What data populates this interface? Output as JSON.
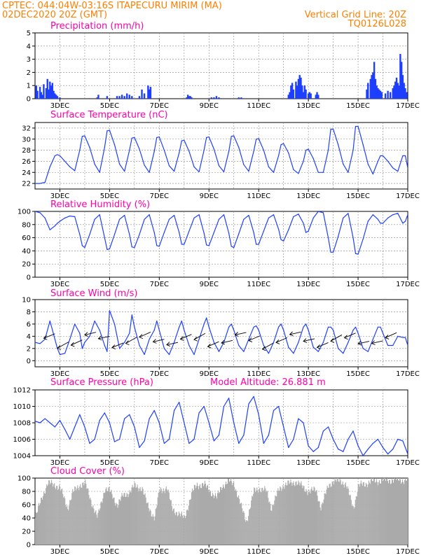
{
  "header": {
    "line1": "CPTEC:   044:04W-03:16S   ITAPECURU MIRIM (MA)",
    "line2_left": "02DEC2020 20Z (GMT)",
    "line2_right": "Vertical Grid Line: 20Z",
    "line3_right": "TQ0126L028"
  },
  "colors": {
    "header": "#ff7f00",
    "panel_title": "#ff00aa",
    "line": "#1f3fff",
    "bar": "#1f3fff",
    "cloud": "#aaaaaa",
    "grid": "#888888"
  },
  "x_axis_labels": [
    "3DEC",
    "5DEC",
    "7DEC",
    "9DEC",
    "11DEC",
    "13DEC",
    "15DEC",
    "17DEC"
  ],
  "chart_data": [
    {
      "id": "precip",
      "type": "bar",
      "title": "Precipitation (mm/h)",
      "ylim": [
        0,
        5
      ],
      "yticks": [
        0,
        1,
        2,
        3,
        4,
        5
      ],
      "xlim_days": [
        2.0,
        17.0
      ],
      "grid": true,
      "x": [
        2.05,
        2.1,
        2.2,
        2.25,
        2.3,
        2.35,
        2.45,
        2.5,
        2.55,
        2.6,
        2.65,
        2.7,
        2.75,
        2.8,
        2.85,
        2.9,
        3.0,
        4.5,
        4.55,
        4.9,
        5.3,
        5.4,
        5.5,
        5.6,
        5.7,
        5.8,
        5.9,
        6.2,
        6.3,
        6.4,
        6.55,
        6.6,
        6.65,
        8.1,
        8.15,
        8.2,
        8.25,
        8.3,
        9.1,
        9.2,
        9.3,
        9.4,
        10.2,
        10.3,
        12.2,
        12.25,
        12.3,
        12.35,
        12.4,
        12.5,
        12.55,
        12.6,
        12.65,
        12.7,
        12.75,
        12.8,
        12.85,
        12.9,
        13.0,
        13.05,
        13.1,
        13.3,
        13.35,
        13.4,
        15.35,
        15.4,
        15.5,
        15.55,
        15.6,
        15.65,
        15.7,
        15.75,
        15.8,
        15.85,
        15.9,
        15.95,
        16.1,
        16.2,
        16.3,
        16.4,
        16.45,
        16.5,
        16.55,
        16.6,
        16.65,
        16.7,
        16.75,
        16.8,
        16.85,
        16.9,
        16.95
      ],
      "values": [
        1.0,
        0.6,
        0.9,
        0.5,
        0.3,
        1.1,
        0.8,
        1.5,
        0.7,
        1.3,
        1.0,
        1.2,
        0.6,
        0.4,
        0.3,
        0.2,
        0.1,
        0.1,
        0.3,
        0.2,
        0.2,
        0.2,
        0.3,
        0.2,
        0.4,
        0.3,
        0.2,
        0.2,
        0.7,
        0.4,
        1.0,
        0.7,
        0.9,
        0.1,
        0.3,
        0.2,
        0.2,
        0.1,
        0.1,
        0.1,
        0.2,
        0.1,
        0.1,
        0.1,
        0.3,
        0.5,
        1.0,
        1.2,
        0.7,
        1.3,
        1.0,
        1.5,
        1.8,
        1.6,
        1.0,
        0.5,
        1.0,
        0.7,
        0.4,
        0.5,
        0.4,
        0.3,
        0.5,
        0.3,
        0.7,
        1.2,
        1.5,
        1.8,
        2.0,
        2.8,
        1.5,
        1.0,
        0.8,
        0.7,
        0.6,
        0.5,
        0.4,
        0.6,
        0.5,
        0.8,
        1.0,
        1.3,
        1.6,
        1.2,
        1.0,
        3.4,
        2.8,
        1.8,
        1.2,
        0.8,
        0.5
      ]
    },
    {
      "id": "temp",
      "type": "line",
      "title": "Surface Temperature (nC)",
      "ylim": [
        21,
        33
      ],
      "yticks": [
        22,
        24,
        26,
        28,
        30,
        32
      ],
      "grid": true,
      "x": [
        2.0,
        2.2,
        2.4,
        2.6,
        2.8,
        2.9,
        3.0,
        3.2,
        3.4,
        3.6,
        3.8,
        3.9,
        4.0,
        4.2,
        4.4,
        4.6,
        4.8,
        4.9,
        5.0,
        5.2,
        5.4,
        5.6,
        5.8,
        5.9,
        6.0,
        6.2,
        6.4,
        6.6,
        6.8,
        6.9,
        7.0,
        7.2,
        7.4,
        7.6,
        7.8,
        7.9,
        8.0,
        8.2,
        8.4,
        8.6,
        8.8,
        8.9,
        9.0,
        9.2,
        9.4,
        9.6,
        9.8,
        9.9,
        10.0,
        10.2,
        10.4,
        10.6,
        10.8,
        10.9,
        11.0,
        11.2,
        11.4,
        11.6,
        11.8,
        11.9,
        12.0,
        12.2,
        12.4,
        12.6,
        12.8,
        12.9,
        13.0,
        13.2,
        13.4,
        13.6,
        13.8,
        13.9,
        14.0,
        14.2,
        14.4,
        14.6,
        14.8,
        14.9,
        15.0,
        15.2,
        15.4,
        15.6,
        15.8,
        15.9,
        16.0,
        16.2,
        16.4,
        16.6,
        16.8,
        16.9,
        17.0
      ],
      "values": [
        22.0,
        22.0,
        22.2,
        25.0,
        27.0,
        27.2,
        27.0,
        26.0,
        25.0,
        24.3,
        28.0,
        30.5,
        30.6,
        28.5,
        25.5,
        24.0,
        28.5,
        31.5,
        31.6,
        29.0,
        25.5,
        24.2,
        28.0,
        30.2,
        30.3,
        28.2,
        25.3,
        24.0,
        27.8,
        30.3,
        30.4,
        28.0,
        25.2,
        24.2,
        27.5,
        29.7,
        29.8,
        27.8,
        25.0,
        24.1,
        28.0,
        30.3,
        30.4,
        28.2,
        25.2,
        24.1,
        27.8,
        30.5,
        30.6,
        28.5,
        25.4,
        24.2,
        27.8,
        30.0,
        30.1,
        28.0,
        25.0,
        24.0,
        27.0,
        29.0,
        29.2,
        27.5,
        24.5,
        23.8,
        26.0,
        28.0,
        28.2,
        26.5,
        24.0,
        24.0,
        28.0,
        31.8,
        31.8,
        29.0,
        25.5,
        24.0,
        28.0,
        32.3,
        32.3,
        29.0,
        25.5,
        23.7,
        26.0,
        27.0,
        27.0,
        26.0,
        24.8,
        24.2,
        27.0,
        27.0,
        24.8
      ]
    },
    {
      "id": "rh",
      "type": "line",
      "title": "Relative Humidity (%)",
      "ylim": [
        0,
        100
      ],
      "yticks": [
        0,
        20,
        40,
        60,
        80,
        100
      ],
      "grid": true,
      "x": [
        2.0,
        2.2,
        2.4,
        2.6,
        2.8,
        2.9,
        3.0,
        3.2,
        3.4,
        3.6,
        3.8,
        3.9,
        4.0,
        4.2,
        4.4,
        4.6,
        4.8,
        4.9,
        5.0,
        5.2,
        5.4,
        5.6,
        5.8,
        5.9,
        6.0,
        6.2,
        6.4,
        6.6,
        6.8,
        6.9,
        7.0,
        7.2,
        7.4,
        7.6,
        7.8,
        7.9,
        8.0,
        8.2,
        8.4,
        8.6,
        8.8,
        8.9,
        9.0,
        9.2,
        9.4,
        9.6,
        9.8,
        9.9,
        10.0,
        10.2,
        10.4,
        10.6,
        10.8,
        10.9,
        11.0,
        11.2,
        11.4,
        11.6,
        11.8,
        11.9,
        12.0,
        12.2,
        12.4,
        12.6,
        12.8,
        12.9,
        13.0,
        13.2,
        13.4,
        13.6,
        13.8,
        13.9,
        14.0,
        14.2,
        14.4,
        14.6,
        14.8,
        14.9,
        15.0,
        15.2,
        15.4,
        15.6,
        15.8,
        15.9,
        16.0,
        16.2,
        16.4,
        16.6,
        16.8,
        16.9,
        17.0
      ],
      "values": [
        100,
        98,
        90,
        72,
        78,
        82,
        85,
        90,
        93,
        92,
        65,
        48,
        45,
        65,
        88,
        95,
        60,
        42,
        43,
        65,
        88,
        94,
        65,
        46,
        45,
        65,
        88,
        95,
        68,
        48,
        47,
        68,
        88,
        94,
        68,
        50,
        50,
        70,
        90,
        95,
        67,
        49,
        48,
        68,
        88,
        95,
        67,
        47,
        45,
        66,
        88,
        94,
        68,
        50,
        50,
        70,
        90,
        95,
        73,
        57,
        55,
        72,
        92,
        96,
        82,
        68,
        70,
        90,
        100,
        98,
        60,
        38,
        38,
        62,
        90,
        97,
        60,
        36,
        35,
        58,
        85,
        95,
        88,
        82,
        82,
        90,
        95,
        97,
        82,
        85,
        95
      ]
    },
    {
      "id": "wind",
      "type": "line",
      "title": "Surface Wind (m/s)",
      "ylim": [
        -1,
        10
      ],
      "yticks": [
        0,
        2,
        4,
        6,
        8,
        10
      ],
      "grid": true,
      "x": [
        2.0,
        2.2,
        2.4,
        2.6,
        2.8,
        2.9,
        3.0,
        3.2,
        3.4,
        3.6,
        3.8,
        3.9,
        4.0,
        4.2,
        4.4,
        4.6,
        4.8,
        4.9,
        5.0,
        5.2,
        5.4,
        5.6,
        5.8,
        5.9,
        6.0,
        6.2,
        6.4,
        6.6,
        6.8,
        6.9,
        7.0,
        7.2,
        7.4,
        7.6,
        7.8,
        7.9,
        8.0,
        8.2,
        8.4,
        8.6,
        8.8,
        8.9,
        9.0,
        9.2,
        9.4,
        9.6,
        9.8,
        9.9,
        10.0,
        10.2,
        10.4,
        10.6,
        10.8,
        10.9,
        11.0,
        11.2,
        11.4,
        11.6,
        11.8,
        11.9,
        12.0,
        12.2,
        12.4,
        12.6,
        12.8,
        12.9,
        13.0,
        13.2,
        13.4,
        13.6,
        13.8,
        13.9,
        14.0,
        14.2,
        14.4,
        14.6,
        14.8,
        14.9,
        15.0,
        15.2,
        15.4,
        15.6,
        15.8,
        15.9,
        16.0,
        16.2,
        16.4,
        16.6,
        16.8,
        16.9,
        17.0
      ],
      "values": [
        3.0,
        2.8,
        3.5,
        6.5,
        3.5,
        2.0,
        1.0,
        1.2,
        3.5,
        6.0,
        4.5,
        2.0,
        3.0,
        4.0,
        6.5,
        5.0,
        2.5,
        1.5,
        8.2,
        6.0,
        2.0,
        3.0,
        4.5,
        7.5,
        5.5,
        2.5,
        1.0,
        3.5,
        5.0,
        6.5,
        5.0,
        2.0,
        1.0,
        3.0,
        5.5,
        6.5,
        5.0,
        2.5,
        1.0,
        3.5,
        6.0,
        7.0,
        5.5,
        3.0,
        1.5,
        3.0,
        5.5,
        6.0,
        5.0,
        2.5,
        1.5,
        3.5,
        5.5,
        5.7,
        5.0,
        2.5,
        1.2,
        3.0,
        5.5,
        6.0,
        5.0,
        2.2,
        1.2,
        3.0,
        5.5,
        6.0,
        5.0,
        2.2,
        1.5,
        3.0,
        5.5,
        5.5,
        5.0,
        2.0,
        1.2,
        3.0,
        5.0,
        5.5,
        4.5,
        2.0,
        1.5,
        3.5,
        5.5,
        5.5,
        4.5,
        2.5,
        2.5,
        4.0,
        3.8,
        3.8,
        2.5
      ]
    },
    {
      "id": "pressure",
      "type": "line",
      "title": "Surface Pressure (hPa)",
      "subtitle": "Model Altitude: 26.881 m",
      "ylim": [
        1004,
        1012
      ],
      "yticks": [
        1004,
        1006,
        1008,
        1010,
        1012
      ],
      "grid": true,
      "x": [
        2.0,
        2.2,
        2.4,
        2.6,
        2.8,
        3.0,
        3.2,
        3.4,
        3.6,
        3.8,
        4.0,
        4.2,
        4.4,
        4.6,
        4.8,
        5.0,
        5.2,
        5.4,
        5.6,
        5.8,
        6.0,
        6.2,
        6.4,
        6.6,
        6.8,
        7.0,
        7.2,
        7.4,
        7.6,
        7.8,
        8.0,
        8.2,
        8.4,
        8.6,
        8.8,
        9.0,
        9.2,
        9.4,
        9.6,
        9.8,
        10.0,
        10.2,
        10.4,
        10.6,
        10.8,
        11.0,
        11.2,
        11.4,
        11.6,
        11.8,
        12.0,
        12.2,
        12.4,
        12.6,
        12.8,
        13.0,
        13.2,
        13.4,
        13.6,
        13.8,
        14.0,
        14.2,
        14.4,
        14.6,
        14.8,
        15.0,
        15.2,
        15.4,
        15.6,
        15.8,
        16.0,
        16.2,
        16.4,
        16.6,
        16.8,
        17.0
      ],
      "values": [
        1008.2,
        1008.0,
        1008.5,
        1008.0,
        1007.5,
        1008.3,
        1007.2,
        1006.0,
        1007.5,
        1009.0,
        1007.5,
        1005.5,
        1006.0,
        1008.3,
        1009.2,
        1008.0,
        1005.7,
        1006.0,
        1008.5,
        1009.0,
        1007.5,
        1005.0,
        1005.8,
        1008.5,
        1009.5,
        1008.0,
        1005.5,
        1006.0,
        1009.5,
        1010.5,
        1008.0,
        1005.5,
        1006.0,
        1009.2,
        1010.0,
        1008.0,
        1005.8,
        1006.5,
        1010.0,
        1011.0,
        1008.0,
        1005.5,
        1006.5,
        1010.3,
        1011.2,
        1009.0,
        1005.5,
        1006.5,
        1009.5,
        1010.0,
        1007.5,
        1005.0,
        1006.0,
        1008.5,
        1008.0,
        1005.2,
        1004.5,
        1005.0,
        1007.0,
        1007.5,
        1006.0,
        1004.8,
        1004.5,
        1006.0,
        1007.0,
        1005.2,
        1004.0,
        1004.8,
        1005.5,
        1006.0,
        1005.0,
        1004.2,
        1004.8,
        1006.0,
        1005.8,
        1004.2
      ]
    },
    {
      "id": "cloud",
      "type": "area",
      "title": "Cloud Cover (%)",
      "ylim": [
        0,
        100
      ],
      "yticks": [
        0,
        20,
        40,
        60,
        80,
        100
      ],
      "grid": true,
      "x": [
        2.0,
        2.3,
        2.5,
        2.8,
        3.0,
        3.3,
        3.5,
        3.8,
        4.0,
        4.3,
        4.5,
        4.8,
        5.0,
        5.3,
        5.5,
        5.8,
        6.0,
        6.3,
        6.5,
        6.8,
        7.0,
        7.3,
        7.5,
        7.8,
        8.0,
        8.3,
        8.5,
        8.8,
        9.0,
        9.3,
        9.5,
        9.8,
        10.0,
        10.3,
        10.5,
        10.8,
        11.0,
        11.3,
        11.5,
        11.8,
        12.0,
        12.3,
        12.5,
        12.8,
        13.0,
        13.3,
        13.5,
        13.8,
        14.0,
        14.3,
        14.5,
        14.8,
        15.0,
        15.3,
        15.5,
        15.8,
        16.0,
        16.3,
        16.5,
        16.8,
        17.0
      ],
      "values": [
        40,
        75,
        92,
        90,
        85,
        55,
        78,
        90,
        92,
        60,
        40,
        85,
        80,
        60,
        72,
        80,
        88,
        85,
        60,
        40,
        82,
        85,
        55,
        45,
        40,
        78,
        90,
        90,
        82,
        70,
        88,
        95,
        92,
        55,
        35,
        80,
        85,
        80,
        55,
        82,
        90,
        92,
        95,
        85,
        80,
        82,
        55,
        90,
        95,
        96,
        90,
        55,
        88,
        92,
        95,
        96,
        97,
        97,
        98,
        97,
        98
      ]
    }
  ]
}
